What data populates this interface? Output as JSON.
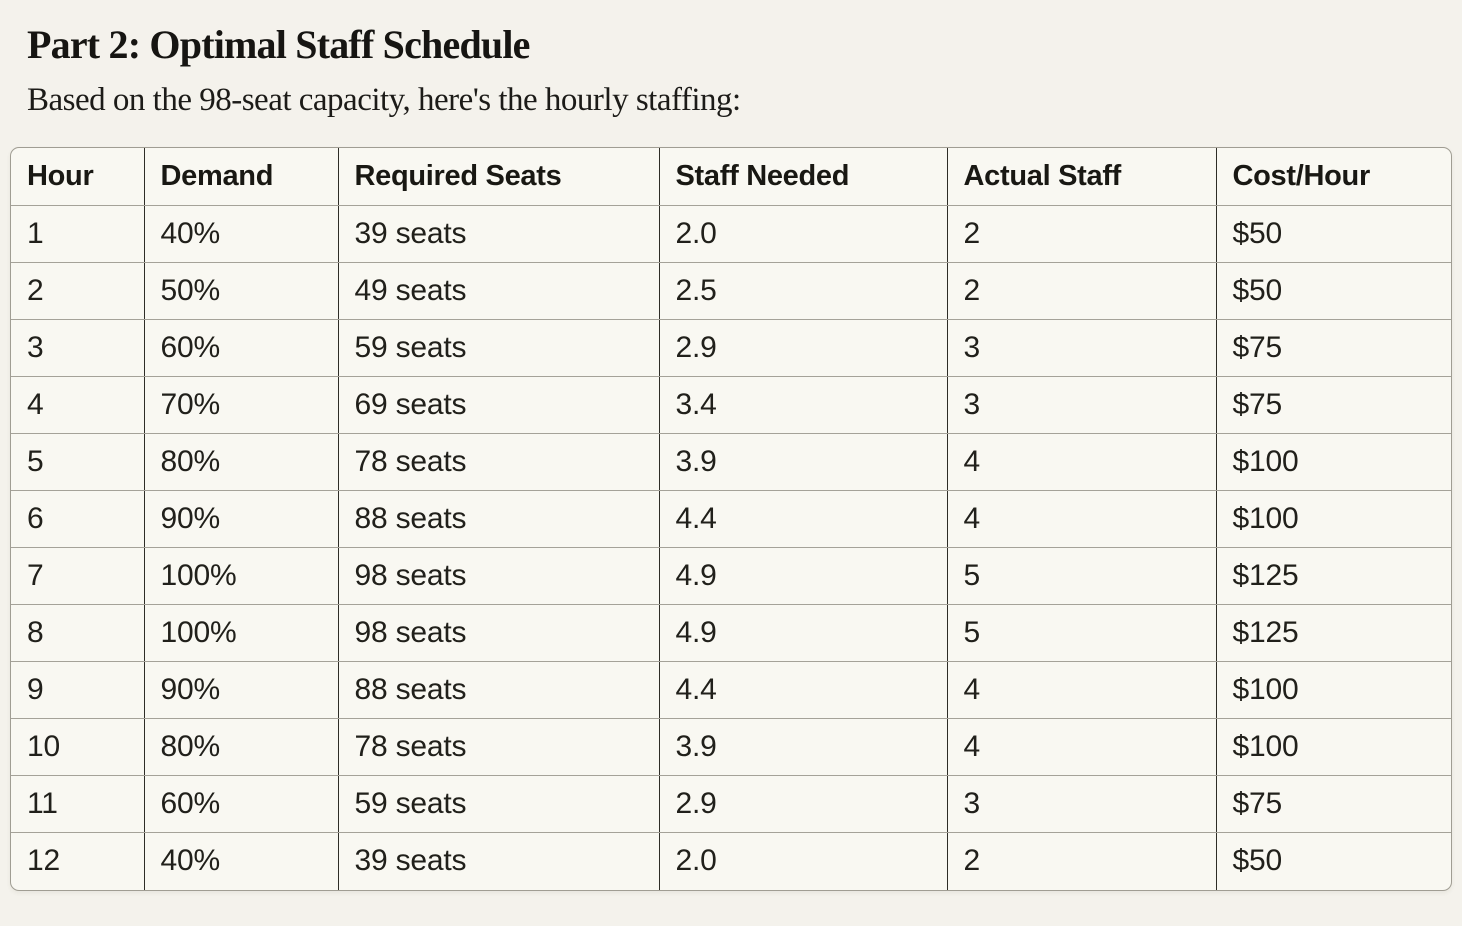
{
  "page": {
    "title": "Part 2: Optimal Staff Schedule",
    "subtitle": "Based on the 98-seat capacity, here's the hourly staffing:"
  },
  "chart_data": {
    "type": "table",
    "title": "Part 2: Optimal Staff Schedule",
    "columns": [
      "Hour",
      "Demand",
      "Required Seats",
      "Staff Needed",
      "Actual Staff",
      "Cost/Hour"
    ],
    "rows": [
      [
        "1",
        "40%",
        "39 seats",
        "2.0",
        "2",
        "$50"
      ],
      [
        "2",
        "50%",
        "49 seats",
        "2.5",
        "2",
        "$50"
      ],
      [
        "3",
        "60%",
        "59 seats",
        "2.9",
        "3",
        "$75"
      ],
      [
        "4",
        "70%",
        "69 seats",
        "3.4",
        "3",
        "$75"
      ],
      [
        "5",
        "80%",
        "78 seats",
        "3.9",
        "4",
        "$100"
      ],
      [
        "6",
        "90%",
        "88 seats",
        "4.4",
        "4",
        "$100"
      ],
      [
        "7",
        "100%",
        "98 seats",
        "4.9",
        "5",
        "$125"
      ],
      [
        "8",
        "100%",
        "98 seats",
        "4.9",
        "5",
        "$125"
      ],
      [
        "9",
        "90%",
        "88 seats",
        "4.4",
        "4",
        "$100"
      ],
      [
        "10",
        "80%",
        "78 seats",
        "3.9",
        "4",
        "$100"
      ],
      [
        "11",
        "60%",
        "59 seats",
        "2.9",
        "3",
        "$75"
      ],
      [
        "12",
        "40%",
        "39 seats",
        "2.0",
        "2",
        "$50"
      ]
    ]
  },
  "colors": {
    "page_background": "#f4f2ec",
    "table_background": "#f9f8f2",
    "text": "#1c1b18",
    "column_border": "#2e2d27",
    "row_border": "#a5a299",
    "outer_border": "#a09d93"
  }
}
